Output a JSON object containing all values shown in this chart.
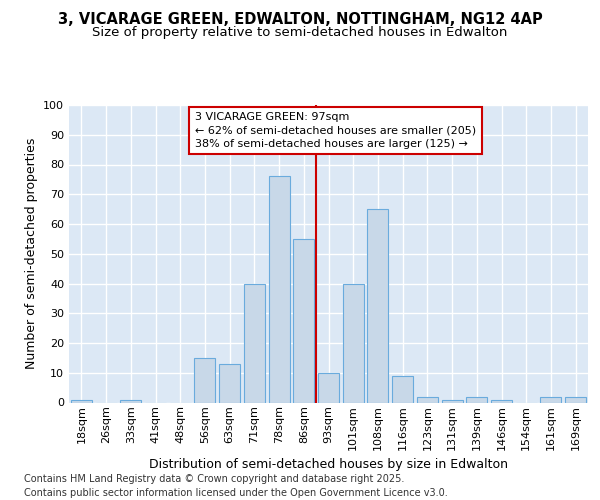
{
  "title_line1": "3, VICARAGE GREEN, EDWALTON, NOTTINGHAM, NG12 4AP",
  "title_line2": "Size of property relative to semi-detached houses in Edwalton",
  "xlabel": "Distribution of semi-detached houses by size in Edwalton",
  "ylabel": "Number of semi-detached properties",
  "footer": "Contains HM Land Registry data © Crown copyright and database right 2025.\nContains public sector information licensed under the Open Government Licence v3.0.",
  "categories": [
    "18sqm",
    "26sqm",
    "33sqm",
    "41sqm",
    "48sqm",
    "56sqm",
    "63sqm",
    "71sqm",
    "78sqm",
    "86sqm",
    "93sqm",
    "101sqm",
    "108sqm",
    "116sqm",
    "123sqm",
    "131sqm",
    "139sqm",
    "146sqm",
    "154sqm",
    "161sqm",
    "169sqm"
  ],
  "values": [
    1,
    0,
    1,
    0,
    0,
    15,
    13,
    40,
    76,
    55,
    10,
    40,
    65,
    9,
    2,
    1,
    2,
    1,
    0,
    2,
    2
  ],
  "bar_color": "#c8d8e8",
  "bar_edge_color": "#6aabdd",
  "redline_x": 9.5,
  "annotation_text": "3 VICARAGE GREEN: 97sqm\n← 62% of semi-detached houses are smaller (205)\n38% of semi-detached houses are larger (125) →",
  "annotation_box_color": "#ffffff",
  "annotation_box_edge": "#cc0000",
  "ylim": [
    0,
    100
  ],
  "yticks": [
    0,
    10,
    20,
    30,
    40,
    50,
    60,
    70,
    80,
    90,
    100
  ],
  "background_color": "#dce8f5",
  "grid_color": "#ffffff",
  "title_fontsize": 10.5,
  "subtitle_fontsize": 9.5,
  "axis_label_fontsize": 9,
  "tick_fontsize": 8,
  "annotation_fontsize": 8,
  "footer_fontsize": 7
}
